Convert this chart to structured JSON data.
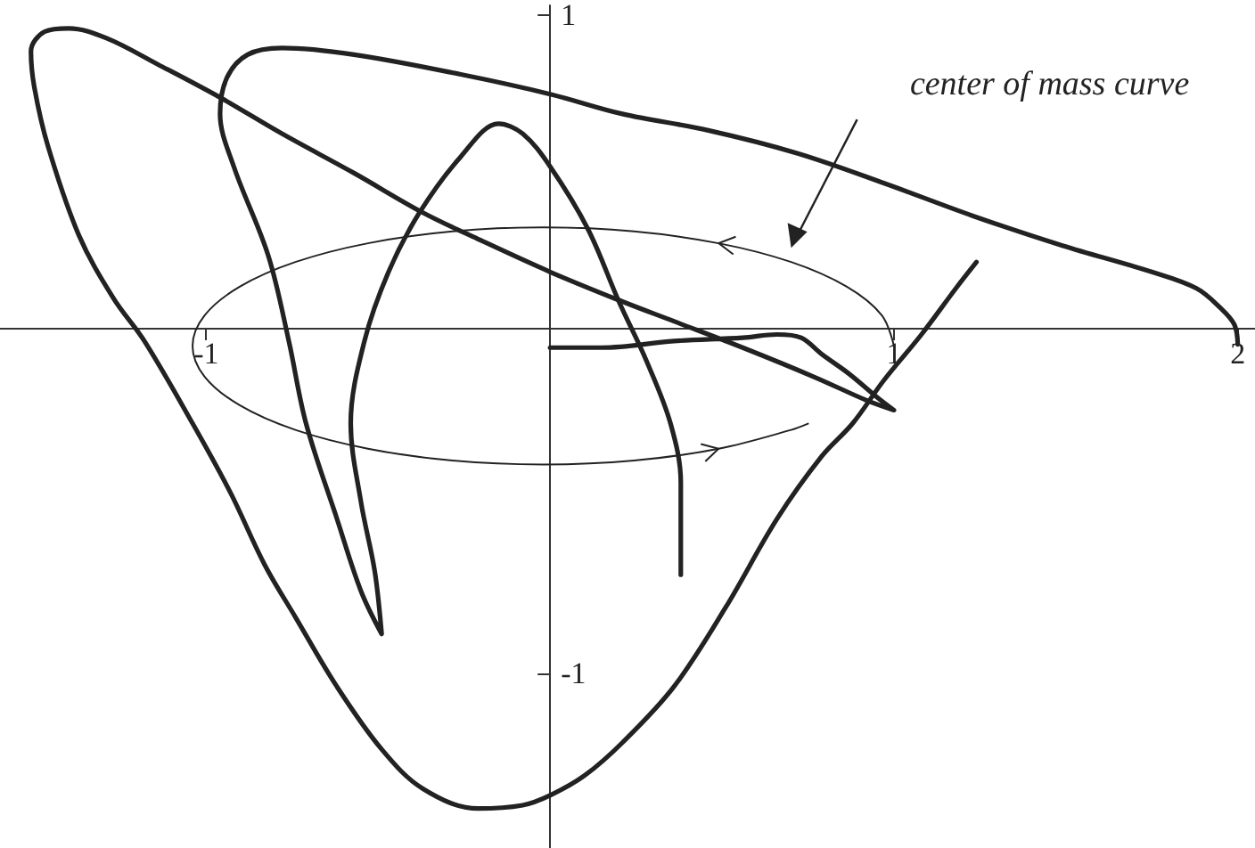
{
  "chart_data": {
    "type": "line",
    "xlim": [
      -1.6,
      2.05
    ],
    "ylim": [
      -1.53,
      1.03
    ],
    "xticks": [
      -1,
      1,
      2
    ],
    "yticks": [
      -1,
      1
    ],
    "grid": false,
    "marker": "none",
    "line_style": "solid",
    "annotations": [
      "center of mass curve"
    ],
    "series": [
      {
        "color": "#222222",
        "x": [
          1.0,
          0.965,
          0.863,
          0.701,
          0.49,
          0.244,
          -0.02,
          -0.284,
          -0.53,
          -0.741,
          -0.903,
          -1.005,
          -1.04,
          -1.005,
          -0.903,
          -0.741,
          -0.53,
          -0.284,
          -0.02,
          0.244,
          0.49,
          0.701,
          0.75
        ],
        "values": [
          -0.005,
          0.088,
          0.175,
          0.25,
          0.307,
          0.343,
          0.355,
          0.343,
          0.307,
          0.25,
          0.175,
          0.088,
          -0.005,
          -0.098,
          -0.185,
          -0.26,
          -0.317,
          -0.353,
          -0.365,
          -0.353,
          -0.317,
          -0.26,
          -0.241
        ]
      },
      {
        "color": "#222222",
        "x": [
          0.0,
          0.15,
          0.36,
          0.56,
          0.66,
          0.73,
          0.79,
          0.87,
          0.95,
          1.0,
          0.92,
          0.77,
          0.56,
          0.36,
          0.21,
          0.0,
          -0.21,
          -0.37,
          -0.57,
          -0.78,
          -0.96,
          -1.14,
          -1.29,
          -1.4,
          -1.47,
          -1.51,
          -1.5,
          -1.46,
          -1.37,
          -1.27,
          -1.18,
          -1.04,
          -0.93,
          -0.83,
          -0.74,
          -0.62,
          -0.49,
          -0.37,
          -0.21,
          -0.08,
          0.0,
          0.1,
          0.21,
          0.36,
          0.51,
          0.66,
          0.79,
          0.88,
          0.97,
          1.08,
          1.18,
          1.24
        ],
        "values": [
          -0.01,
          -0.01,
          0.01,
          0.02,
          0.03,
          0.02,
          -0.03,
          -0.09,
          -0.16,
          -0.2,
          -0.17,
          -0.1,
          -0.01,
          0.07,
          0.13,
          0.22,
          0.32,
          0.4,
          0.52,
          0.64,
          0.75,
          0.85,
          0.93,
          0.96,
          0.95,
          0.89,
          0.78,
          0.6,
          0.33,
          0.14,
          0.01,
          -0.24,
          -0.45,
          -0.67,
          -0.83,
          -1.04,
          -1.23,
          -1.35,
          -1.41,
          -1.4,
          -1.37,
          -1.31,
          -1.21,
          -1.04,
          -0.8,
          -0.53,
          -0.34,
          -0.24,
          -0.11,
          0.03,
          0.17,
          0.25
        ]
      },
      {
        "color": "#222222",
        "x": [
          2.0,
          1.99,
          1.95,
          1.88,
          1.75,
          1.49,
          1.23,
          0.97,
          0.72,
          0.46,
          0.21,
          0.0,
          -0.26,
          -0.57,
          -0.78,
          -0.88,
          -0.94,
          -0.96,
          -0.92,
          -0.82,
          -0.76,
          -0.71,
          -0.62,
          -0.55,
          -0.49,
          -0.51,
          -0.55,
          -0.58,
          -0.54,
          -0.47,
          -0.38,
          -0.26,
          -0.15,
          -0.08,
          0.0,
          0.11,
          0.2,
          0.28,
          0.35,
          0.38,
          0.38
        ],
        "values": [
          0.0,
          0.06,
          0.11,
          0.17,
          0.22,
          0.3,
          0.39,
          0.49,
          0.58,
          0.65,
          0.7,
          0.76,
          0.82,
          0.88,
          0.9,
          0.88,
          0.81,
          0.7,
          0.54,
          0.27,
          0.01,
          -0.24,
          -0.53,
          -0.75,
          -0.88,
          -0.69,
          -0.48,
          -0.24,
          0.01,
          0.22,
          0.4,
          0.57,
          0.67,
          0.64,
          0.54,
          0.35,
          0.13,
          -0.05,
          -0.24,
          -0.42,
          -0.7
        ]
      }
    ]
  }
}
